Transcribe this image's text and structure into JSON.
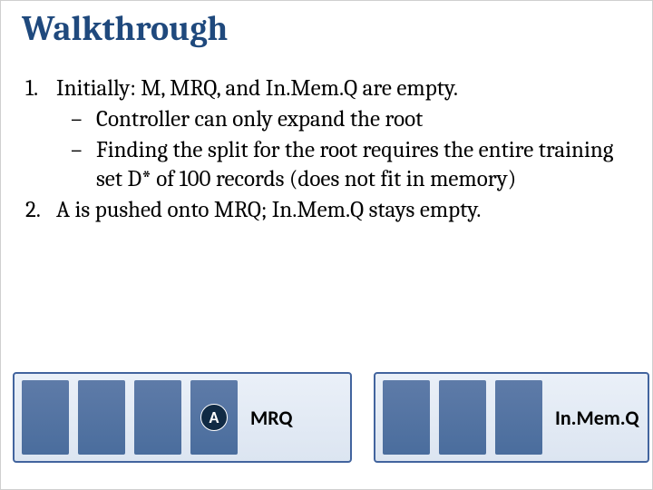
{
  "title": {
    "text": "Walkthrough",
    "color": "#1f497d",
    "fontsize": 38
  },
  "list": {
    "item1_num": "1.",
    "item1_text": "Initially: M, MRQ, and In.Mem.Q are empty.",
    "sub1_dash": "–",
    "sub1_text": "Controller can only expand the root",
    "sub2_dash": "–",
    "sub2_text": "Finding the split for the root requires the entire training set D* of 100 records (does not fit in memory)",
    "item2_num": "2.",
    "item2_text": "A is pushed onto MRQ; In.Mem.Q stays empty.",
    "text_color": "#000000",
    "fontsize": 25
  },
  "diagram": {
    "mrq": {
      "label": "MRQ",
      "slot_color": "#4e6fa0",
      "slots": 4,
      "a_slot_index": 3,
      "a_label": "A",
      "a_badge_bg": "#102a44",
      "a_badge_fg": "#ffffff"
    },
    "inmem": {
      "label": "In.Mem.Q",
      "slot_color": "#4e6fa0",
      "slots": 3
    },
    "box_border": "#42649e",
    "box_bg_top": "#eaf0f8",
    "box_bg_bottom": "#dce5f1",
    "label_color": "#000000",
    "label_fontsize": 22
  }
}
